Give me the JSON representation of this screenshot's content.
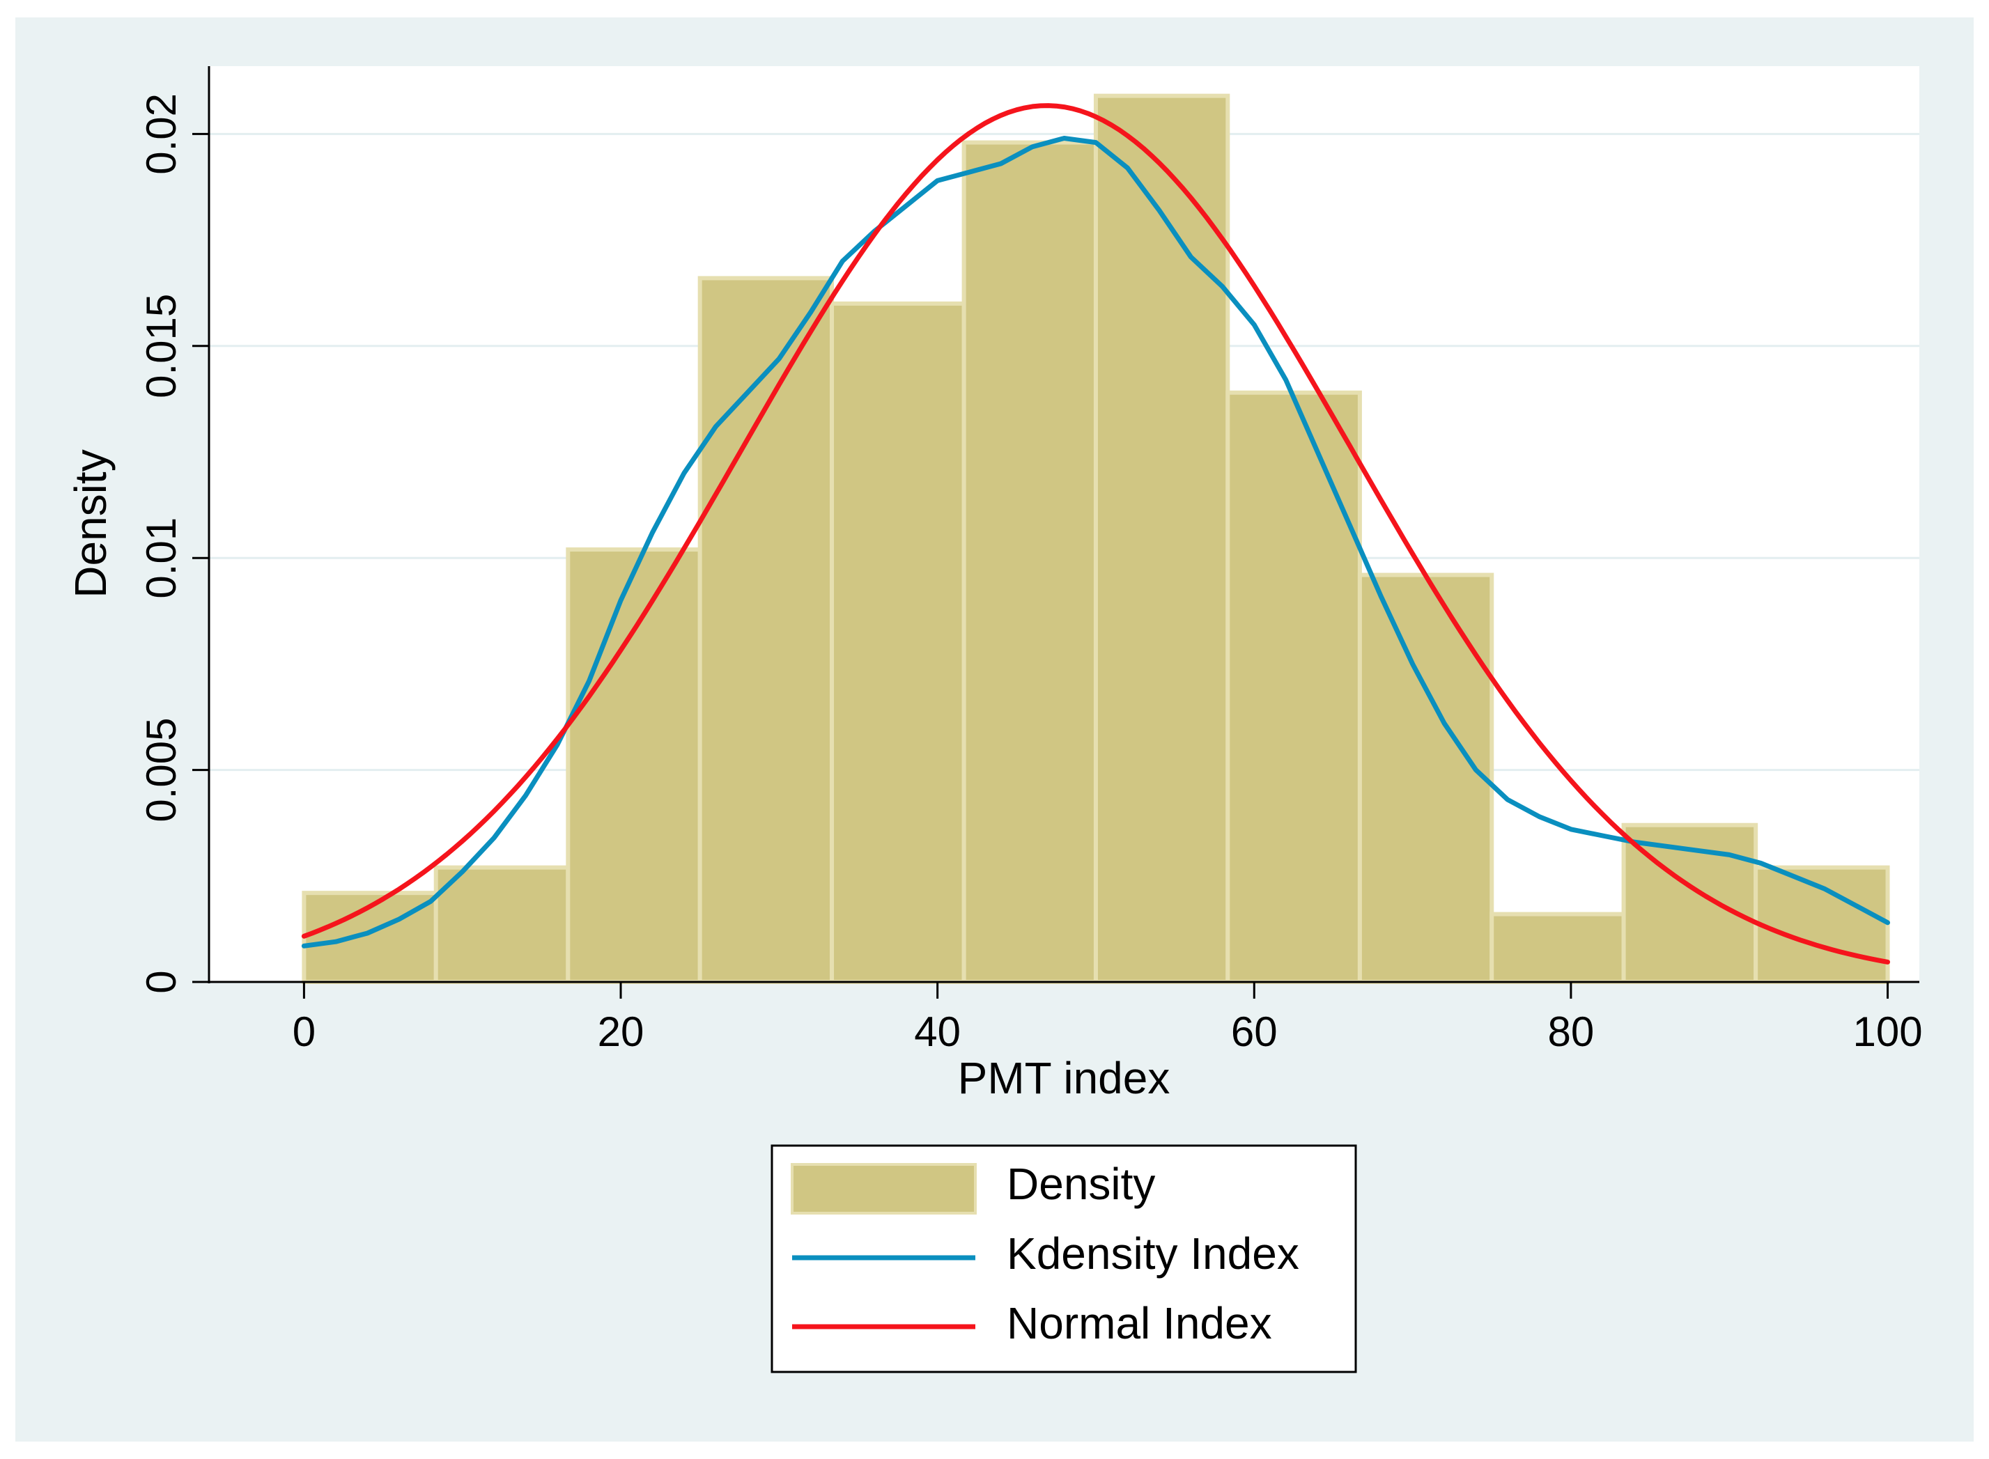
{
  "chart_data": {
    "type": "histogram",
    "title": "",
    "xlabel": "PMT index",
    "ylabel": "Density",
    "xlim": [
      -6,
      102
    ],
    "ylim": [
      0,
      0.0216
    ],
    "x_ticks": [
      0,
      20,
      40,
      60,
      80,
      100
    ],
    "x_tick_labels": [
      "0",
      "20",
      "40",
      "60",
      "80",
      "100"
    ],
    "y_ticks": [
      0,
      0.005,
      0.01,
      0.015,
      0.02
    ],
    "y_tick_labels": [
      "0",
      "0.005",
      "0.01",
      "0.015",
      "0.02"
    ],
    "grid": "horizontal",
    "legend_position": "bottom",
    "colors": {
      "bars": "#d0c683",
      "bar_edge": "#e6dfb0",
      "kdensity": "#0a8fbf",
      "normal": "#f5141c",
      "outer_background": "#eaf2f3",
      "plot_background": "#ffffff",
      "gridline": "#e3eef0",
      "axis": "#000000"
    },
    "histogram": {
      "name": "Density",
      "bin_edges": [
        0,
        8.33,
        16.67,
        25,
        33.33,
        41.67,
        50,
        58.33,
        66.67,
        75,
        83.33,
        91.67,
        100
      ],
      "values": [
        0.0021,
        0.0027,
        0.0102,
        0.0166,
        0.016,
        0.0198,
        0.0209,
        0.0139,
        0.0096,
        0.0016,
        0.0037,
        0.0027
      ]
    },
    "series": [
      {
        "name": "Kdensity Index",
        "x": [
          0,
          2,
          4,
          6,
          8,
          10,
          12,
          14,
          16,
          18,
          20,
          22,
          24,
          26,
          28,
          30,
          32,
          34,
          36,
          38,
          40,
          42,
          44,
          46,
          48,
          50,
          52,
          54,
          56,
          58,
          60,
          62,
          64,
          66,
          68,
          70,
          72,
          74,
          76,
          78,
          80,
          82,
          84,
          86,
          88,
          90,
          92,
          94,
          96,
          98,
          100
        ],
        "y": [
          0.00085,
          0.00095,
          0.00115,
          0.00148,
          0.0019,
          0.0026,
          0.0034,
          0.0044,
          0.0056,
          0.0071,
          0.009,
          0.0106,
          0.012,
          0.0131,
          0.0139,
          0.0147,
          0.0158,
          0.017,
          0.0177,
          0.0183,
          0.0189,
          0.0191,
          0.0193,
          0.0197,
          0.0199,
          0.0198,
          0.0192,
          0.0182,
          0.0171,
          0.0164,
          0.0155,
          0.0142,
          0.0125,
          0.0108,
          0.0091,
          0.0075,
          0.0061,
          0.005,
          0.0043,
          0.0039,
          0.0036,
          0.00345,
          0.0033,
          0.0032,
          0.0031,
          0.003,
          0.0028,
          0.0025,
          0.0022,
          0.0018,
          0.0014
        ]
      },
      {
        "name": "Normal Index",
        "distribution": "normal",
        "mean": 46.9,
        "sd": 19.3,
        "x_range": [
          0,
          100
        ]
      }
    ],
    "legend": [
      "Density",
      "Kdensity Index",
      "Normal Index"
    ]
  }
}
